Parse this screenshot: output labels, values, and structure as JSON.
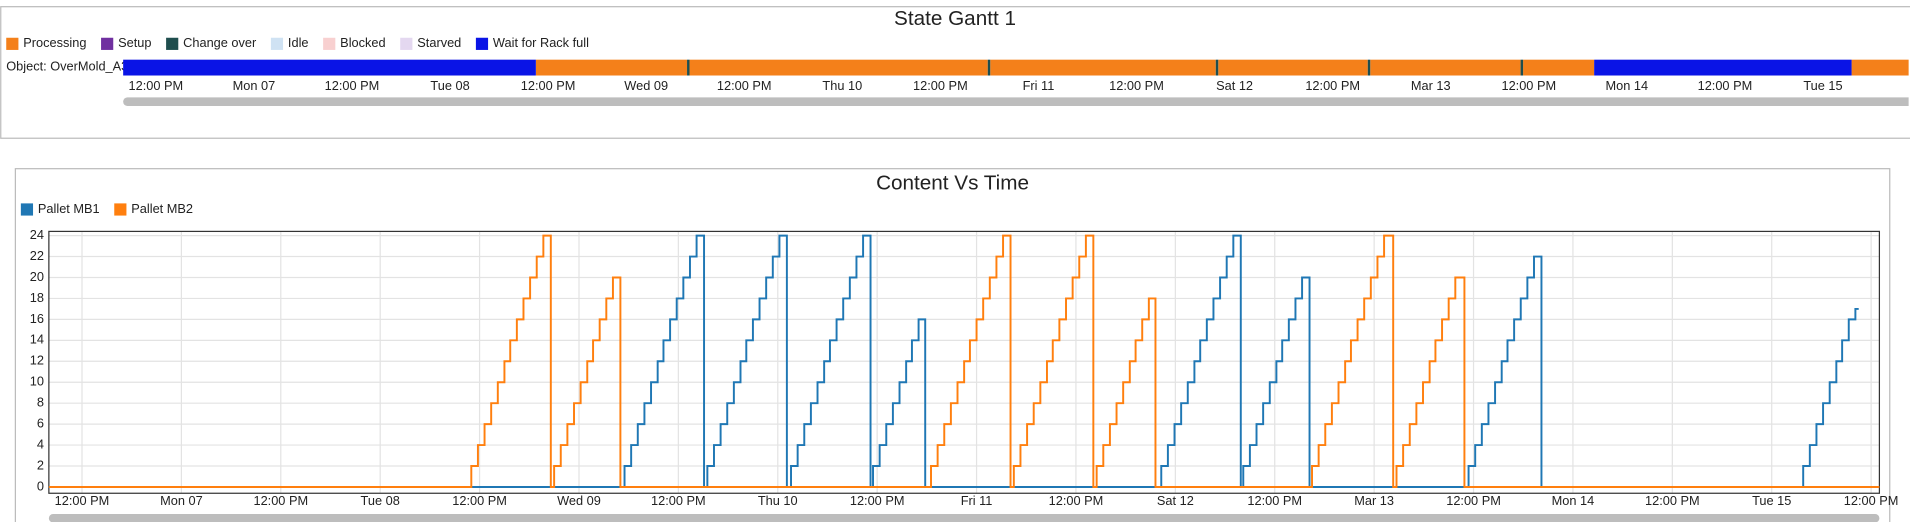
{
  "chart_data": [
    {
      "type": "gantt",
      "title": "State Gantt 1",
      "object": "Object: OverMold_A3",
      "xlim": [
        -4,
        217
      ],
      "xticks": [
        {
          "value": 0,
          "label": "12:00 PM"
        },
        {
          "value": 12,
          "label": "Mon 07"
        },
        {
          "value": 24,
          "label": "12:00 PM"
        },
        {
          "value": 36,
          "label": "Tue 08"
        },
        {
          "value": 48,
          "label": "12:00 PM"
        },
        {
          "value": 60,
          "label": "Wed 09"
        },
        {
          "value": 72,
          "label": "12:00 PM"
        },
        {
          "value": 84,
          "label": "Thu 10"
        },
        {
          "value": 96,
          "label": "12:00 PM"
        },
        {
          "value": 108,
          "label": "Fri 11"
        },
        {
          "value": 120,
          "label": "12:00 PM"
        },
        {
          "value": 132,
          "label": "Sat 12"
        },
        {
          "value": 144,
          "label": "12:00 PM"
        },
        {
          "value": 156,
          "label": "Mar 13"
        },
        {
          "value": 168,
          "label": "12:00 PM"
        },
        {
          "value": 180,
          "label": "Mon 14"
        },
        {
          "value": 192,
          "label": "12:00 PM"
        },
        {
          "value": 204,
          "label": "Tue 15"
        }
      ],
      "series": [
        {
          "name": "Processing",
          "color": "#f4801a",
          "intervals": [
            [
              46.5,
              65
            ],
            [
              65.3,
              101.8
            ],
            [
              102.1,
              129.7
            ],
            [
              130,
              148.3
            ],
            [
              148.6,
              167
            ],
            [
              167.3,
              176
            ],
            [
              207.5,
              217
            ]
          ]
        },
        {
          "name": "Setup",
          "color": "#7030a0",
          "intervals": []
        },
        {
          "name": "Change over",
          "color": "#1f4e4e",
          "intervals": [
            [
              65,
              65.3
            ],
            [
              101.8,
              102.1
            ],
            [
              129.7,
              130
            ],
            [
              148.3,
              148.6
            ],
            [
              167,
              167.3
            ]
          ]
        },
        {
          "name": "Idle",
          "color": "#cfe2f3",
          "intervals": []
        },
        {
          "name": "Blocked",
          "color": "#f8d0d0",
          "intervals": []
        },
        {
          "name": "Starved",
          "color": "#e4d8f0",
          "intervals": []
        },
        {
          "name": "Wait for Rack full",
          "color": "#0a14e6",
          "intervals": [
            [
              -4,
              46.5
            ],
            [
              176,
              207.5
            ]
          ]
        }
      ]
    },
    {
      "type": "line",
      "step": "post",
      "title": "Content Vs Time",
      "grid": true,
      "xlim": [
        -4,
        217
      ],
      "ylim": [
        -0.6,
        24.4
      ],
      "yticks": [
        0,
        2,
        4,
        6,
        8,
        10,
        12,
        14,
        16,
        18,
        20,
        22,
        24
      ],
      "xticks": [
        {
          "value": 0,
          "label": "12:00 PM"
        },
        {
          "value": 12,
          "label": "Mon 07"
        },
        {
          "value": 24,
          "label": "12:00 PM"
        },
        {
          "value": 36,
          "label": "Tue 08"
        },
        {
          "value": 48,
          "label": "12:00 PM"
        },
        {
          "value": 60,
          "label": "Wed 09"
        },
        {
          "value": 72,
          "label": "12:00 PM"
        },
        {
          "value": 84,
          "label": "Thu 10"
        },
        {
          "value": 96,
          "label": "12:00 PM"
        },
        {
          "value": 108,
          "label": "Fri 11"
        },
        {
          "value": 120,
          "label": "12:00 PM"
        },
        {
          "value": 132,
          "label": "Sat 12"
        },
        {
          "value": 144,
          "label": "12:00 PM"
        },
        {
          "value": 156,
          "label": "Mar 13"
        },
        {
          "value": 168,
          "label": "12:00 PM"
        },
        {
          "value": 180,
          "label": "Mon 14"
        },
        {
          "value": 192,
          "label": "12:00 PM"
        },
        {
          "value": 204,
          "label": "Tue 15"
        },
        {
          "value": 216,
          "label": "12:00 PM"
        }
      ],
      "series": [
        {
          "name": "Pallet MB1",
          "color": "#1f77b4",
          "x": [
            -4,
            65.5,
            66.3,
            67.1,
            67.9,
            68.7,
            69.5,
            70.2,
            71,
            71.8,
            72.6,
            73.4,
            74.2,
            75.1,
            75.5,
            76.3,
            77.1,
            77.9,
            78.7,
            79.5,
            80.2,
            81,
            81.8,
            82.6,
            83.4,
            84.2,
            85.1,
            85.6,
            86.4,
            87.2,
            88,
            88.8,
            89.6,
            90.3,
            91.1,
            91.9,
            92.7,
            93.5,
            94.3,
            95.2,
            95.5,
            96.3,
            97.1,
            97.9,
            98.7,
            99.5,
            100.2,
            101,
            101.8,
            130.3,
            131.1,
            131.9,
            132.7,
            133.5,
            134.3,
            135,
            135.8,
            136.6,
            137.4,
            138.2,
            139,
            139.9,
            140.2,
            141,
            141.8,
            142.6,
            143.4,
            144.2,
            144.9,
            145.7,
            146.5,
            147.3,
            148.2,
            167.4,
            168.2,
            169,
            169.8,
            170.6,
            171.4,
            172.1,
            172.9,
            173.7,
            174.5,
            175.3,
            176.2,
            207.8,
            208.6,
            209.4,
            210.2,
            211,
            211.8,
            212.5,
            213.3,
            214.1,
            214.5
          ],
          "values": [
            0,
            2,
            4,
            6,
            8,
            10,
            12,
            14,
            16,
            18,
            20,
            22,
            24,
            0,
            2,
            4,
            6,
            8,
            10,
            12,
            14,
            16,
            18,
            20,
            22,
            24,
            0,
            2,
            4,
            6,
            8,
            10,
            12,
            14,
            16,
            18,
            20,
            22,
            24,
            0,
            2,
            4,
            6,
            8,
            10,
            12,
            14,
            16,
            0,
            2,
            4,
            6,
            8,
            10,
            12,
            14,
            16,
            18,
            20,
            22,
            24,
            0,
            2,
            4,
            6,
            8,
            10,
            12,
            14,
            16,
            18,
            20,
            0,
            2,
            4,
            6,
            8,
            10,
            12,
            14,
            16,
            18,
            20,
            22,
            0,
            2,
            4,
            6,
            8,
            10,
            12,
            14,
            16,
            17,
            17
          ]
        },
        {
          "name": "Pallet MB2",
          "color": "#ff7f0e",
          "x": [
            -4,
            47,
            47.8,
            48.6,
            49.4,
            50.2,
            51,
            51.7,
            52.5,
            53.3,
            54.1,
            54.9,
            55.7,
            56.6,
            57,
            57.8,
            58.6,
            59.4,
            60.2,
            61,
            61.7,
            62.5,
            63.3,
            64.1,
            65,
            102.5,
            103.3,
            104.1,
            104.9,
            105.7,
            106.5,
            107.2,
            108,
            108.8,
            109.6,
            110.4,
            111.2,
            112.1,
            112.5,
            113.3,
            114.1,
            114.9,
            115.7,
            116.5,
            117.2,
            118,
            118.8,
            119.6,
            120.4,
            121.2,
            122.1,
            122.5,
            123.3,
            124.1,
            124.9,
            125.7,
            126.5,
            127.2,
            128,
            128.8,
            129.6,
            148.5,
            149.3,
            150.1,
            150.9,
            151.7,
            152.5,
            153.2,
            154,
            154.8,
            155.6,
            156.4,
            157.2,
            158.3,
            158.7,
            159.5,
            160.3,
            161.1,
            161.9,
            162.7,
            163.4,
            164.2,
            165,
            165.8,
            166.9,
            217
          ],
          "values": [
            0,
            2,
            4,
            6,
            8,
            10,
            12,
            14,
            16,
            18,
            20,
            22,
            24,
            0,
            2,
            4,
            6,
            8,
            10,
            12,
            14,
            16,
            18,
            20,
            0,
            2,
            4,
            6,
            8,
            10,
            12,
            14,
            16,
            18,
            20,
            22,
            24,
            0,
            2,
            4,
            6,
            8,
            10,
            12,
            14,
            16,
            18,
            20,
            22,
            24,
            0,
            2,
            4,
            6,
            8,
            10,
            12,
            14,
            16,
            18,
            0,
            2,
            4,
            6,
            8,
            10,
            12,
            14,
            16,
            18,
            20,
            22,
            24,
            0,
            2,
            4,
            6,
            8,
            10,
            12,
            14,
            16,
            18,
            20,
            0,
            0
          ]
        }
      ]
    }
  ]
}
